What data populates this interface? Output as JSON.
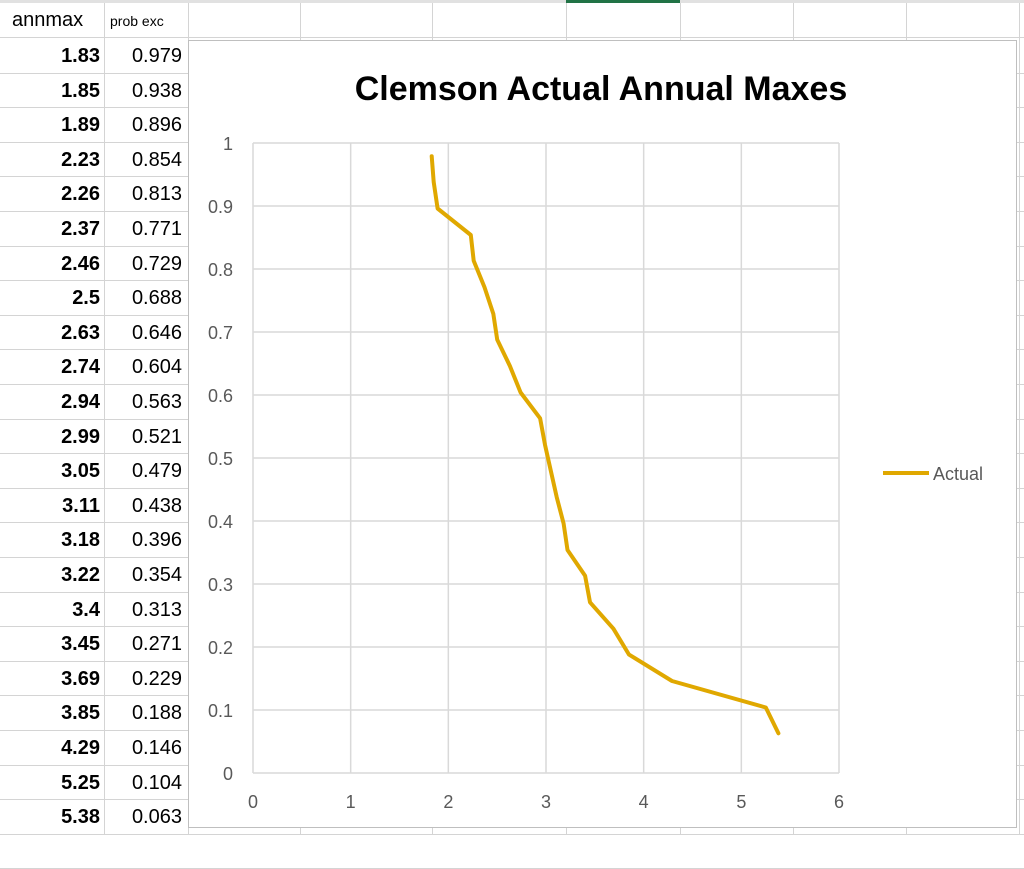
{
  "sheet": {
    "col_a_header": "annmax",
    "col_b_header": "prob exc",
    "rows": [
      {
        "annmax": "1.83",
        "prob_exc": "0.979"
      },
      {
        "annmax": "1.85",
        "prob_exc": "0.938"
      },
      {
        "annmax": "1.89",
        "prob_exc": "0.896"
      },
      {
        "annmax": "2.23",
        "prob_exc": "0.854"
      },
      {
        "annmax": "2.26",
        "prob_exc": "0.813"
      },
      {
        "annmax": "2.37",
        "prob_exc": "0.771"
      },
      {
        "annmax": "2.46",
        "prob_exc": "0.729"
      },
      {
        "annmax": "2.5",
        "prob_exc": "0.688"
      },
      {
        "annmax": "2.63",
        "prob_exc": "0.646"
      },
      {
        "annmax": "2.74",
        "prob_exc": "0.604"
      },
      {
        "annmax": "2.94",
        "prob_exc": "0.563"
      },
      {
        "annmax": "2.99",
        "prob_exc": "0.521"
      },
      {
        "annmax": "3.05",
        "prob_exc": "0.479"
      },
      {
        "annmax": "3.11",
        "prob_exc": "0.438"
      },
      {
        "annmax": "3.18",
        "prob_exc": "0.396"
      },
      {
        "annmax": "3.22",
        "prob_exc": "0.354"
      },
      {
        "annmax": "3.4",
        "prob_exc": "0.313"
      },
      {
        "annmax": "3.45",
        "prob_exc": "0.271"
      },
      {
        "annmax": "3.69",
        "prob_exc": "0.229"
      },
      {
        "annmax": "3.85",
        "prob_exc": "0.188"
      },
      {
        "annmax": "4.29",
        "prob_exc": "0.146"
      },
      {
        "annmax": "5.25",
        "prob_exc": "0.104"
      },
      {
        "annmax": "5.38",
        "prob_exc": "0.063"
      }
    ]
  },
  "chart_data": {
    "type": "line",
    "title": "Clemson Actual Annual Maxes",
    "xlabel": "",
    "ylabel": "",
    "xlim": [
      0,
      6
    ],
    "ylim": [
      0,
      1
    ],
    "x_ticks": [
      "0",
      "1",
      "2",
      "3",
      "4",
      "5",
      "6"
    ],
    "y_ticks": [
      "0",
      "0.1",
      "0.2",
      "0.3",
      "0.4",
      "0.5",
      "0.6",
      "0.7",
      "0.8",
      "0.9",
      "1"
    ],
    "grid": true,
    "legend": "right",
    "series": [
      {
        "name": "Actual",
        "color": "#e0a800",
        "x": [
          1.83,
          1.85,
          1.89,
          2.23,
          2.26,
          2.37,
          2.46,
          2.5,
          2.63,
          2.74,
          2.94,
          2.99,
          3.05,
          3.11,
          3.18,
          3.22,
          3.4,
          3.45,
          3.69,
          3.85,
          4.29,
          5.25,
          5.38
        ],
        "y": [
          0.979,
          0.938,
          0.896,
          0.854,
          0.813,
          0.771,
          0.729,
          0.688,
          0.646,
          0.604,
          0.563,
          0.521,
          0.479,
          0.438,
          0.396,
          0.354,
          0.313,
          0.271,
          0.229,
          0.188,
          0.146,
          0.104,
          0.063
        ]
      }
    ]
  }
}
